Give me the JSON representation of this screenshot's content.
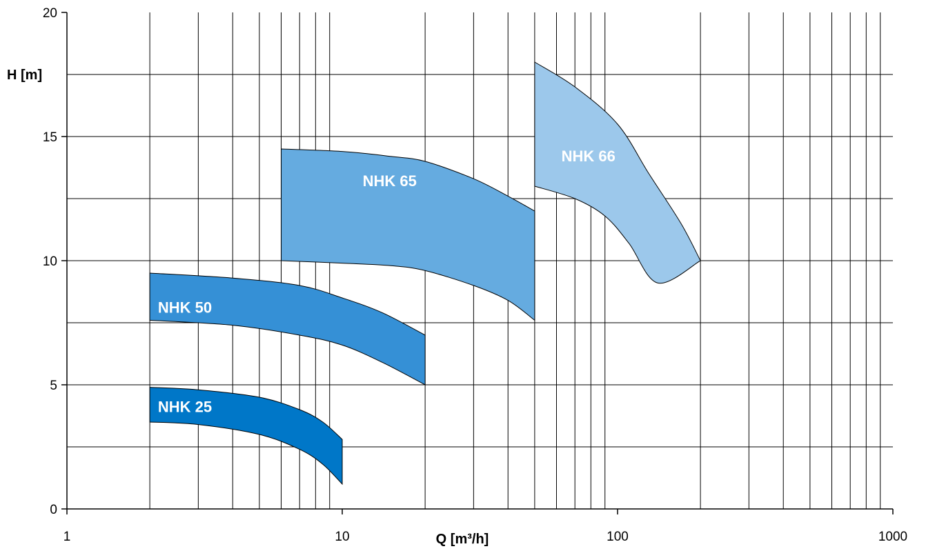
{
  "chart_data": {
    "type": "area",
    "xscale": "log",
    "xlim": [
      1,
      1000
    ],
    "ylim": [
      0,
      20
    ],
    "grid": true,
    "xlabel": "Q [m³/h]",
    "ylabel": "H [m]",
    "xticks": [
      "1",
      "10",
      "100",
      "1000"
    ],
    "yticks": [
      "0",
      "5",
      "10",
      "15",
      "20"
    ],
    "series": [
      {
        "name": "NHK 25",
        "color": "#0077c8",
        "upper": [
          [
            2,
            4.9
          ],
          [
            3,
            4.8
          ],
          [
            5,
            4.5
          ],
          [
            7,
            4.0
          ],
          [
            8.5,
            3.5
          ],
          [
            10,
            2.8
          ]
        ],
        "lower": [
          [
            2,
            3.5
          ],
          [
            3,
            3.4
          ],
          [
            5,
            3.0
          ],
          [
            7,
            2.4
          ],
          [
            8.5,
            1.8
          ],
          [
            10,
            1.0
          ]
        ]
      },
      {
        "name": "NHK 50",
        "color": "#3590d6",
        "upper": [
          [
            2,
            9.5
          ],
          [
            4,
            9.3
          ],
          [
            7,
            9.0
          ],
          [
            10,
            8.5
          ],
          [
            14,
            7.9
          ],
          [
            20,
            7.0
          ]
        ],
        "lower": [
          [
            2,
            7.6
          ],
          [
            4,
            7.4
          ],
          [
            7,
            7.0
          ],
          [
            10,
            6.6
          ],
          [
            14,
            5.9
          ],
          [
            20,
            5.0
          ]
        ]
      },
      {
        "name": "NHK 65",
        "color": "#65abe0",
        "upper": [
          [
            6,
            14.5
          ],
          [
            10,
            14.4
          ],
          [
            15,
            14.2
          ],
          [
            20,
            14.0
          ],
          [
            30,
            13.3
          ],
          [
            40,
            12.6
          ],
          [
            50,
            12.0
          ]
        ],
        "lower": [
          [
            6,
            10.0
          ],
          [
            10,
            9.9
          ],
          [
            15,
            9.8
          ],
          [
            20,
            9.6
          ],
          [
            30,
            9.0
          ],
          [
            40,
            8.4
          ],
          [
            50,
            7.6
          ]
        ]
      },
      {
        "name": "NHK 66",
        "color": "#9cc8eb",
        "upper": [
          [
            50,
            18.0
          ],
          [
            70,
            17.0
          ],
          [
            100,
            15.5
          ],
          [
            130,
            13.5
          ],
          [
            170,
            11.5
          ],
          [
            200,
            10.0
          ]
        ],
        "lower": [
          [
            50,
            13.0
          ],
          [
            70,
            12.5
          ],
          [
            90,
            11.8
          ],
          [
            110,
            10.7
          ],
          [
            140,
            9.1
          ],
          [
            200,
            10.0
          ]
        ]
      }
    ]
  }
}
